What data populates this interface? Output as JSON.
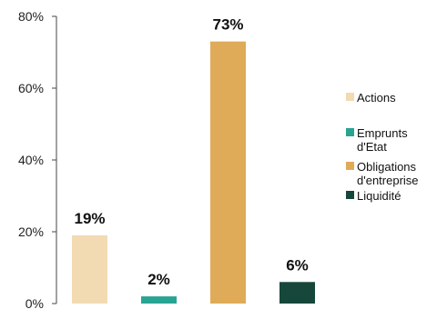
{
  "chart_data": {
    "type": "bar",
    "categories": [
      "Actions",
      "Emprunts d'Etat",
      "Obligations d'entreprise",
      "Liquidité"
    ],
    "values": [
      19,
      2,
      73,
      6
    ],
    "data_labels": [
      "19%",
      "2%",
      "73%",
      "6%"
    ],
    "colors": [
      "#f2dab3",
      "#2aa392",
      "#dfab58",
      "#16473a"
    ],
    "ylim": [
      0,
      80
    ],
    "yticks": [
      0,
      20,
      40,
      60,
      80
    ],
    "ytick_labels": [
      "0%",
      "20%",
      "40%",
      "60%",
      "80%"
    ],
    "legend": {
      "position": "right",
      "entries": [
        {
          "lines": [
            "Actions"
          ]
        },
        {
          "lines": [
            "Emprunts",
            "d'Etat"
          ]
        },
        {
          "lines": [
            "Obligations",
            "d'entreprise"
          ]
        },
        {
          "lines": [
            "Liquidité"
          ]
        }
      ]
    },
    "title": "",
    "xlabel": "",
    "ylabel": "",
    "grid": false
  }
}
